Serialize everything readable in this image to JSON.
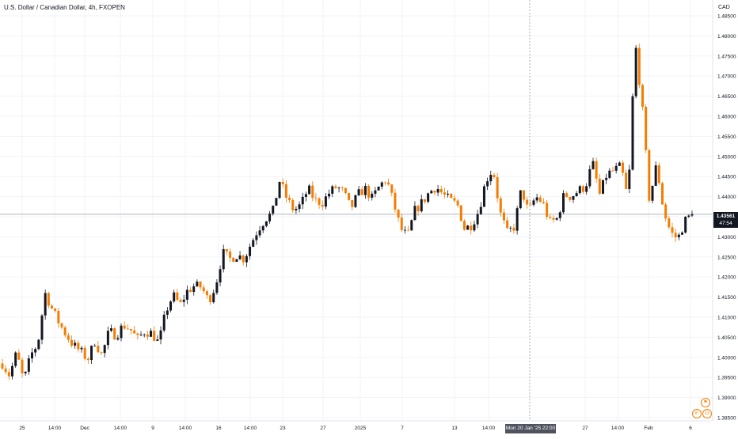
{
  "title": "U.S. Dollar / Canadian Dollar, 4h, FXOPEN",
  "currency": "CAD",
  "last_price": "1.43561",
  "countdown": "47:54",
  "crosshair_label": "Mon 20 Jan '25   22:00",
  "colors": {
    "up": "#131722",
    "down": "#f57c00",
    "grid": "#f0f3fa",
    "price_line": "#b2b5be"
  },
  "icons": [
    "news-flag-icon",
    "earnings-icon",
    "dividends-icon"
  ],
  "chart_data": {
    "type": "candlestick",
    "title": "U.S. Dollar / Canadian Dollar, 4h, FXOPEN",
    "ylim": [
      1.385,
      1.4875
    ],
    "yticks": [
      "1.48500",
      "1.48000",
      "1.47500",
      "1.47000",
      "1.46500",
      "1.46000",
      "1.45500",
      "1.45000",
      "1.44500",
      "1.44000",
      "1.43500",
      "1.43000",
      "1.42500",
      "1.42000",
      "1.41500",
      "1.41000",
      "1.40500",
      "1.40000",
      "1.39500",
      "1.39000",
      "1.38500"
    ],
    "xticks": [
      "25",
      "14:00",
      "Dec",
      "14:00",
      "9",
      "14:00",
      "16",
      "14:00",
      "23",
      "27",
      "2025",
      "7",
      "13",
      "14:00",
      "Mon 20 Jan '25   22:00",
      "27",
      "14:00",
      "Feb",
      "6"
    ],
    "grid": true,
    "last_price": 1.43561,
    "path": [
      1.3985,
      1.3955,
      1.4012,
      1.394,
      1.4005,
      1.4035,
      1.416,
      1.412,
      1.4085,
      1.4055,
      1.403,
      1.4015,
      1.3995,
      1.404,
      1.4005,
      1.4065,
      1.4055,
      1.408,
      1.407,
      1.4045,
      1.4065,
      1.406,
      1.4035,
      1.4115,
      1.4155,
      1.413,
      1.4165,
      1.4178,
      1.4175,
      1.414,
      1.418,
      1.426,
      1.4245,
      1.4255,
      1.4245,
      1.4285,
      1.432,
      1.4345,
      1.436,
      1.444,
      1.4395,
      1.4365,
      1.438,
      1.442,
      1.439,
      1.4385,
      1.441,
      1.4425,
      1.441,
      1.437,
      1.4405,
      1.442,
      1.4395,
      1.4425,
      1.4445,
      1.4385,
      1.432,
      1.43,
      1.4365,
      1.4385,
      1.441,
      1.4425,
      1.4405,
      1.439,
      1.438,
      1.432,
      1.433,
      1.4365,
      1.444,
      1.447,
      1.436,
      1.431,
      1.4325,
      1.442,
      1.436,
      1.44,
      1.4385,
      1.4335,
      1.4345,
      1.4405,
      1.44,
      1.4415,
      1.4425,
      1.4485,
      1.4405,
      1.4455,
      1.4465,
      1.4475,
      1.439,
      1.4785,
      1.462,
      1.439,
      1.448,
      1.4365,
      1.431,
      1.4295,
      1.434,
      1.4356
    ]
  }
}
